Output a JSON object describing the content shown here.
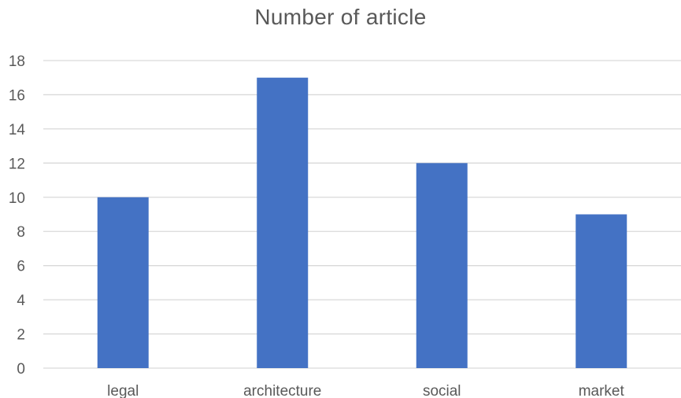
{
  "chart_data": {
    "type": "bar",
    "title": "Number of article",
    "categories": [
      "legal",
      "architecture",
      "social",
      "market"
    ],
    "values": [
      10,
      17,
      12,
      9
    ],
    "xlabel": "",
    "ylabel": "",
    "ylim": [
      0,
      18
    ],
    "yticks": [
      0,
      2,
      4,
      6,
      8,
      10,
      12,
      14,
      16,
      18
    ],
    "grid": true,
    "legend": "none",
    "bar_color": "#4472c4"
  }
}
